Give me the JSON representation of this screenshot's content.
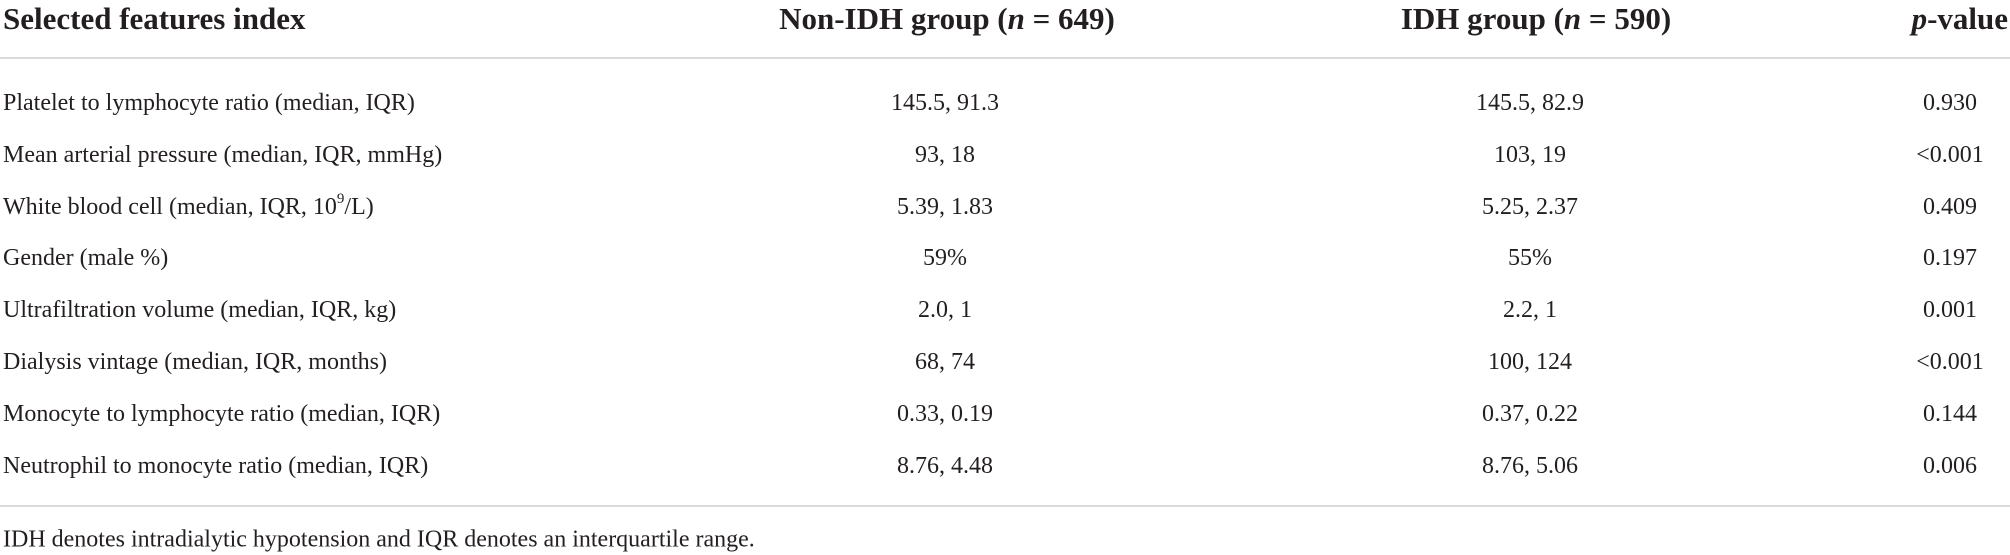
{
  "table": {
    "header": [
      [
        "Selected features index"
      ],
      [
        "Non-IDH group (",
        "n",
        " = 649)"
      ],
      [
        "IDH group (",
        "n",
        " = 590)"
      ],
      [
        "p",
        "-value"
      ]
    ],
    "rows": [
      [
        [
          "Platelet to lymphocyte ratio (median, IQR)"
        ],
        "145.5, 91.3",
        "145.5, 82.9",
        "0.930"
      ],
      [
        [
          "Mean arterial pressure (median, IQR, mmHg)"
        ],
        "93, 18",
        "103, 19",
        "<0.001"
      ],
      [
        [
          "White blood cell (median, IQR, 10",
          "9",
          "/L)"
        ],
        "5.39, 1.83",
        "5.25, 2.37",
        "0.409"
      ],
      [
        [
          "Gender (male %)"
        ],
        "59%",
        "55%",
        "0.197"
      ],
      [
        [
          "Ultrafiltration volume (median, IQR, kg)"
        ],
        "2.0, 1",
        "2.2, 1",
        "0.001"
      ],
      [
        [
          "Dialysis vintage (median, IQR, months)"
        ],
        "68, 74",
        "100, 124",
        "<0.001"
      ],
      [
        [
          "Monocyte to lymphocyte ratio (median, IQR)"
        ],
        "0.33, 0.19",
        "0.37, 0.22",
        "0.144"
      ],
      [
        [
          "Neutrophil to monocyte ratio (median, IQR)"
        ],
        "8.76, 4.48",
        "8.76, 5.06",
        "0.006"
      ]
    ],
    "footnote": "IDH denotes intradialytic hypotension and IQR denotes an interquartile range."
  }
}
